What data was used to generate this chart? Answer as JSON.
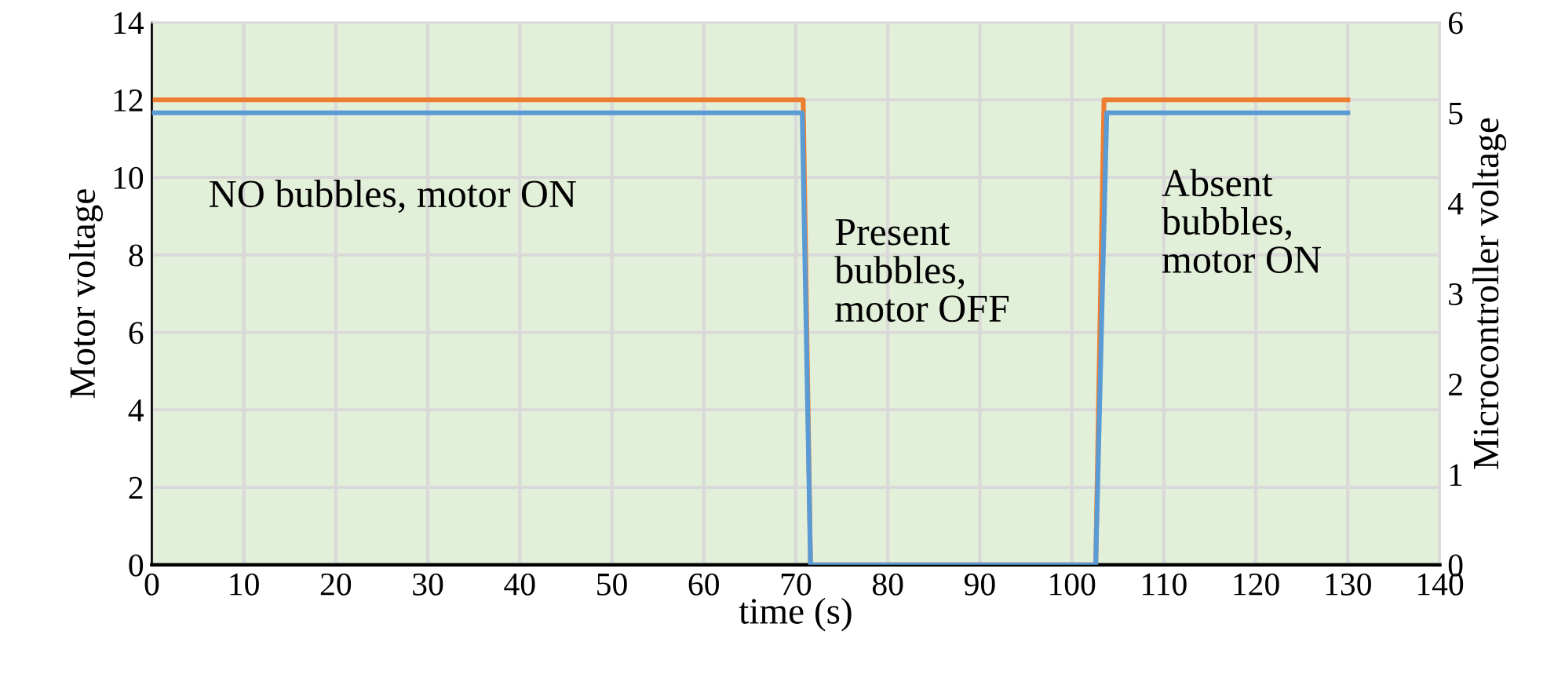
{
  "chart_data": {
    "type": "line",
    "xlabel": "time (s)",
    "ylabel": "Motor voltage",
    "y2label": "Microcontroller voltage",
    "annotations": [
      "NO bubbles, motor ON",
      "Present\nbubbles,\nmotor OFF",
      "Absent\nbubbles,\nmotor ON"
    ],
    "series": [
      {
        "color": "#ed7d31",
        "x": [
          0,
          70.8,
          71.6,
          102.6,
          103.5,
          130
        ],
        "values": [
          12,
          12,
          0,
          0,
          12,
          12
        ]
      },
      {
        "color": "#5b9bd5",
        "axis": "y2",
        "x": [
          0,
          70.7,
          71.6,
          102.6,
          103.8,
          130
        ],
        "values": [
          5,
          5,
          0,
          0,
          5,
          5
        ]
      }
    ],
    "xlim": [
      0,
      140
    ],
    "xticks": [
      0,
      10,
      20,
      30,
      40,
      50,
      60,
      70,
      80,
      90,
      100,
      110,
      120,
      130,
      140
    ],
    "ylim": [
      0,
      14
    ],
    "yticks": [
      0,
      2,
      4,
      6,
      8,
      10,
      12,
      14
    ],
    "y2lim": [
      0,
      6
    ],
    "y2ticks": [
      0,
      1,
      2,
      3,
      4,
      5,
      6
    ],
    "grid": true,
    "marker": "none",
    "line_style": "solid"
  }
}
